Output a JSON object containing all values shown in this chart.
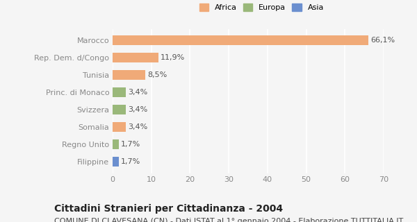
{
  "categories": [
    "Filippine",
    "Regno Unito",
    "Somalia",
    "Svizzera",
    "Princ. di Monaco",
    "Tunisia",
    "Rep. Dem. d/Congo",
    "Marocco"
  ],
  "values": [
    1.7,
    1.7,
    3.4,
    3.4,
    3.4,
    8.5,
    11.9,
    66.1
  ],
  "labels": [
    "1,7%",
    "1,7%",
    "3,4%",
    "3,4%",
    "3,4%",
    "8,5%",
    "11,9%",
    "66,1%"
  ],
  "colors": [
    "#6b8fcf",
    "#9ab87a",
    "#f0aa78",
    "#9ab87a",
    "#9ab87a",
    "#f0aa78",
    "#f0aa78",
    "#f0aa78"
  ],
  "legend": [
    {
      "label": "Africa",
      "color": "#f0aa78"
    },
    {
      "label": "Europa",
      "color": "#9ab87a"
    },
    {
      "label": "Asia",
      "color": "#6b8fcf"
    }
  ],
  "xlim": [
    0,
    70
  ],
  "xticks": [
    0,
    10,
    20,
    30,
    40,
    50,
    60,
    70
  ],
  "title": "Cittadini Stranieri per Cittadinanza - 2004",
  "subtitle": "COMUNE DI CLAVESANA (CN) - Dati ISTAT al 1° gennaio 2004 - Elaborazione TUTTITALIA.IT",
  "bar_height": 0.55,
  "background_color": "#f5f5f5",
  "title_fontsize": 10,
  "subtitle_fontsize": 8,
  "label_fontsize": 8,
  "tick_fontsize": 8,
  "ytick_color": "#888888",
  "grid_color": "#ffffff"
}
